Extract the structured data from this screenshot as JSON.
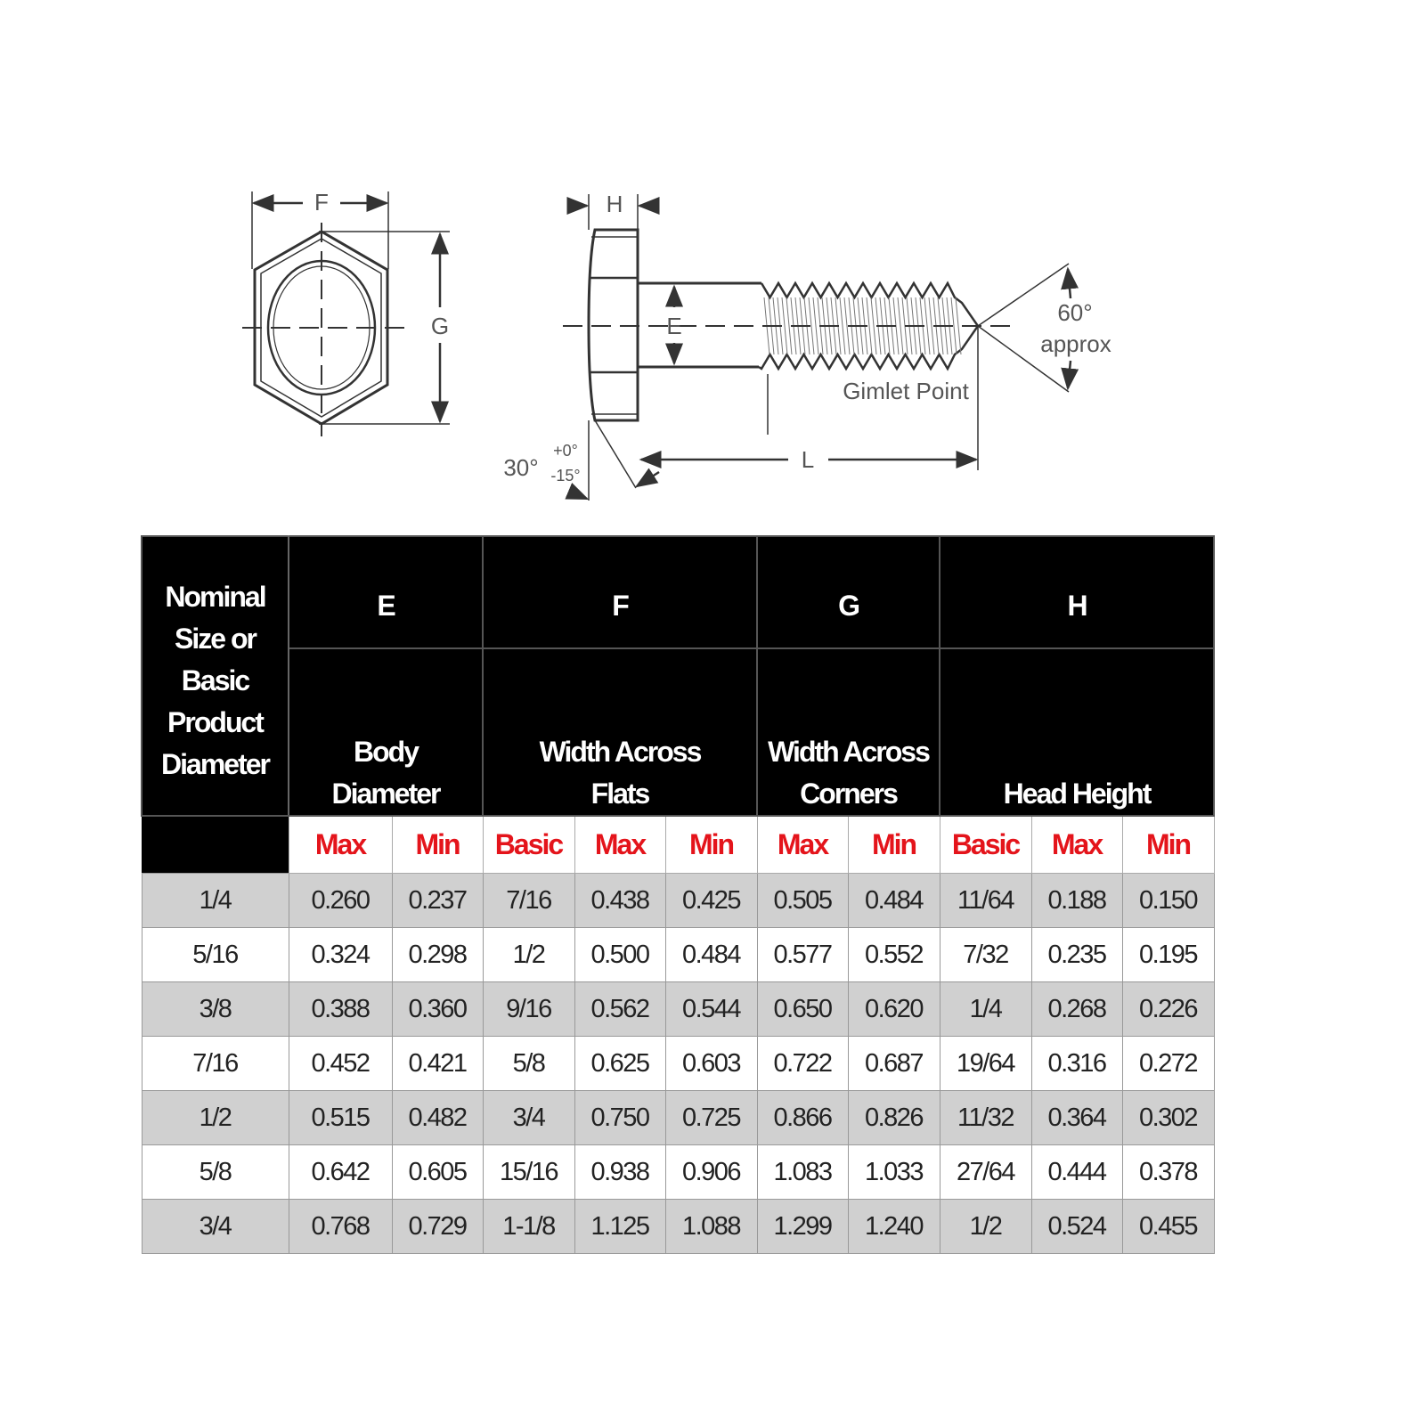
{
  "diagram": {
    "labels": {
      "F": "F",
      "G": "G",
      "H": "H",
      "E": "E",
      "L": "L",
      "angle60": "60°",
      "approx": "approx",
      "gimlet": "Gimlet Point",
      "angle30": "30°",
      "tol_plus": "+0°",
      "tol_minus": "-15°"
    }
  },
  "table": {
    "nominal_header": [
      "Nominal",
      "Size or",
      "Basic",
      "Product",
      "Diameter"
    ],
    "groups": [
      {
        "letter": "E",
        "desc": [
          "Body",
          "Diameter"
        ]
      },
      {
        "letter": "F",
        "desc": [
          "Width Across",
          "Flats"
        ]
      },
      {
        "letter": "G",
        "desc": [
          "Width Across",
          "Corners"
        ]
      },
      {
        "letter": "H",
        "desc": [
          "Head Height"
        ]
      }
    ],
    "subheaders": [
      "Max",
      "Min",
      "Basic",
      "Max",
      "Min",
      "Max",
      "Min",
      "Basic",
      "Max",
      "Min"
    ],
    "rows": [
      [
        "1/4",
        "0.260",
        "0.237",
        "7/16",
        "0.438",
        "0.425",
        "0.505",
        "0.484",
        "11/64",
        "0.188",
        "0.150"
      ],
      [
        "5/16",
        "0.324",
        "0.298",
        "1/2",
        "0.500",
        "0.484",
        "0.577",
        "0.552",
        "7/32",
        "0.235",
        "0.195"
      ],
      [
        "3/8",
        "0.388",
        "0.360",
        "9/16",
        "0.562",
        "0.544",
        "0.650",
        "0.620",
        "1/4",
        "0.268",
        "0.226"
      ],
      [
        "7/16",
        "0.452",
        "0.421",
        "5/8",
        "0.625",
        "0.603",
        "0.722",
        "0.687",
        "19/64",
        "0.316",
        "0.272"
      ],
      [
        "1/2",
        "0.515",
        "0.482",
        "3/4",
        "0.750",
        "0.725",
        "0.866",
        "0.826",
        "11/32",
        "0.364",
        "0.302"
      ],
      [
        "5/8",
        "0.642",
        "0.605",
        "15/16",
        "0.938",
        "0.906",
        "1.083",
        "1.033",
        "27/64",
        "0.444",
        "0.378"
      ],
      [
        "3/4",
        "0.768",
        "0.729",
        "1-1/8",
        "1.125",
        "1.088",
        "1.299",
        "1.240",
        "1/2",
        "0.524",
        "0.455"
      ]
    ],
    "colors": {
      "header_bg": "#000000",
      "subheader_text": "#e4141b",
      "row_shade": "#d0d0d0"
    }
  }
}
